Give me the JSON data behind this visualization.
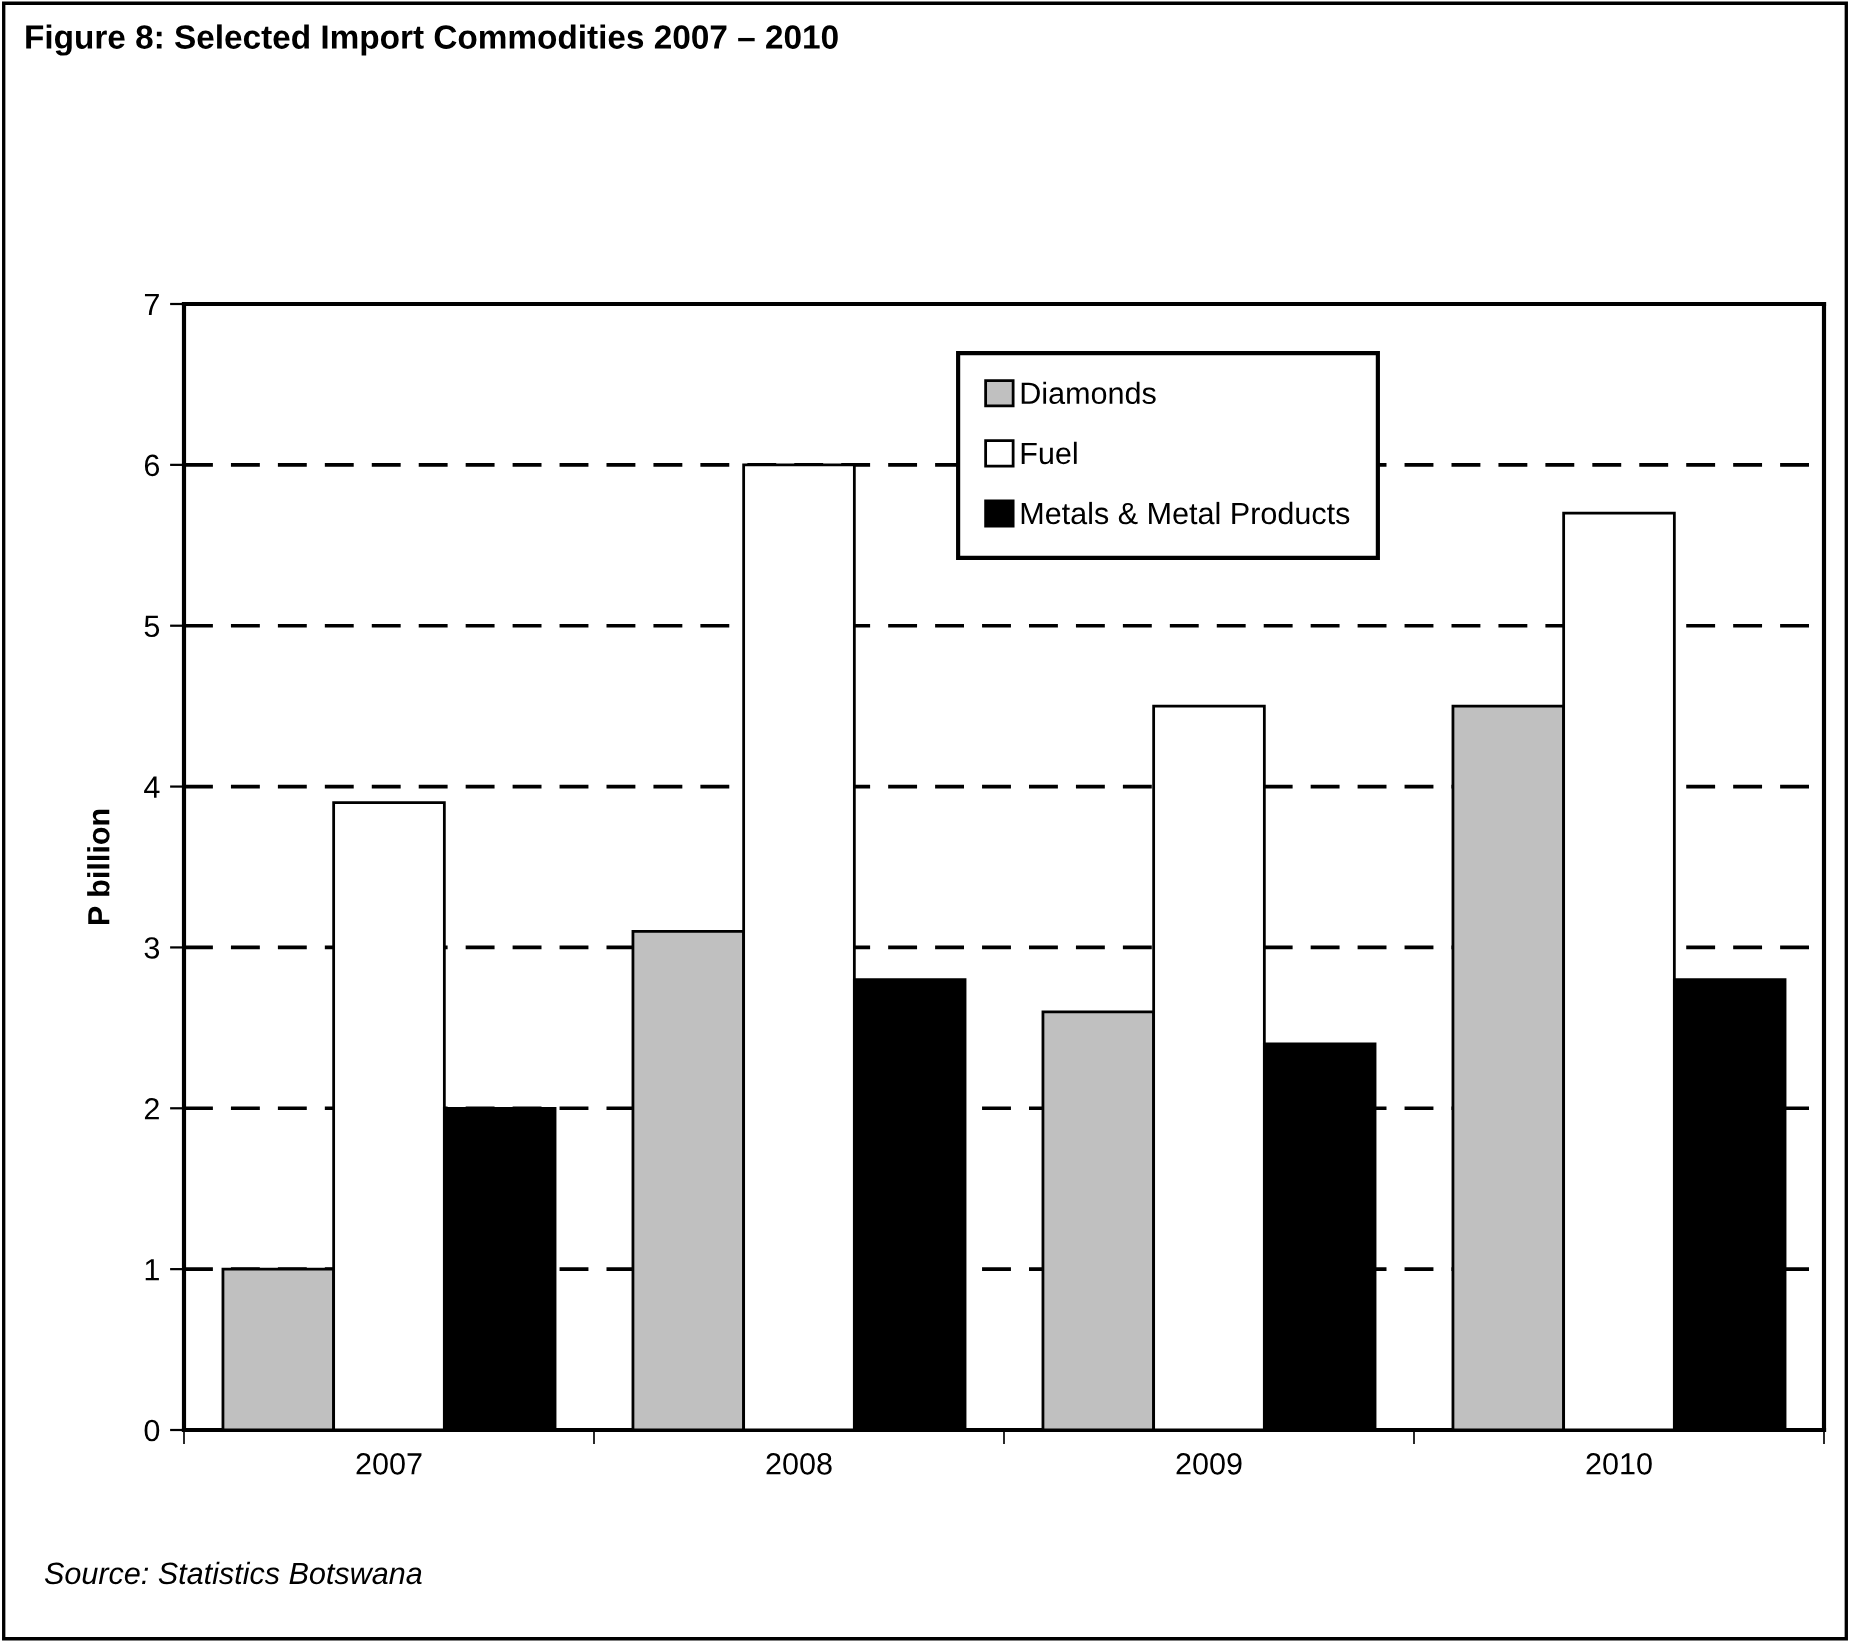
{
  "chart_data": {
    "type": "bar",
    "title": "Figure 8: Selected Import Commodities 2007 – 2010",
    "ylabel": "P billion",
    "categories": [
      "2007",
      "2008",
      "2009",
      "2010"
    ],
    "series": [
      {
        "name": "Diamonds",
        "color": "#c0c0c0",
        "values": [
          1.0,
          3.1,
          2.6,
          4.5
        ]
      },
      {
        "name": "Fuel",
        "color": "#ffffff",
        "values": [
          3.9,
          6.0,
          4.5,
          5.7
        ]
      },
      {
        "name": "Metals & Metal Products",
        "color": "#000000",
        "values": [
          2.0,
          2.8,
          2.4,
          2.8
        ]
      }
    ],
    "ylim": [
      0,
      7
    ],
    "yticks": [
      0,
      1,
      2,
      3,
      4,
      5,
      6,
      7
    ],
    "grid": "y",
    "legend": "top",
    "annotations": [
      "Source: Statistics Botswana"
    ]
  }
}
